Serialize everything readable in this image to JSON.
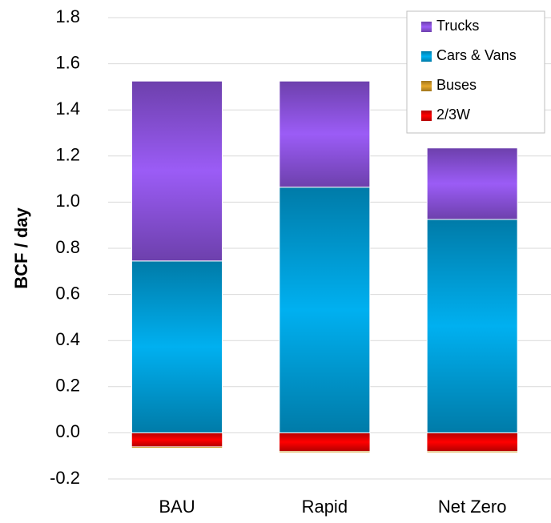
{
  "chart_data": {
    "type": "bar",
    "stacked": true,
    "y_label": "BCF / day",
    "categories": [
      "BAU",
      "Rapid",
      "Net Zero"
    ],
    "series": [
      {
        "name": "2/3W",
        "color": "#ff0000",
        "values": [
          -0.06,
          -0.08,
          -0.08
        ]
      },
      {
        "name": "Buses",
        "color": "#e6a82a",
        "values": [
          -0.005,
          -0.005,
          -0.005
        ]
      },
      {
        "name": "Cars & Vans",
        "color": "#00b0f0",
        "values": [
          0.745,
          1.065,
          0.925
        ]
      },
      {
        "name": "Trucks",
        "color": "#9b5cf6",
        "values": [
          0.78,
          0.46,
          0.31
        ]
      }
    ],
    "ylim": [
      -0.2,
      1.8
    ],
    "yticks": [
      -0.2,
      {
        "value": 0,
        "label": "0.0"
      },
      0.2,
      0.4,
      0.6,
      0.8,
      {
        "value": 1,
        "label": "1.0"
      },
      1.2,
      1.4,
      1.6,
      1.8
    ],
    "grid": true,
    "legend": "upper right"
  }
}
